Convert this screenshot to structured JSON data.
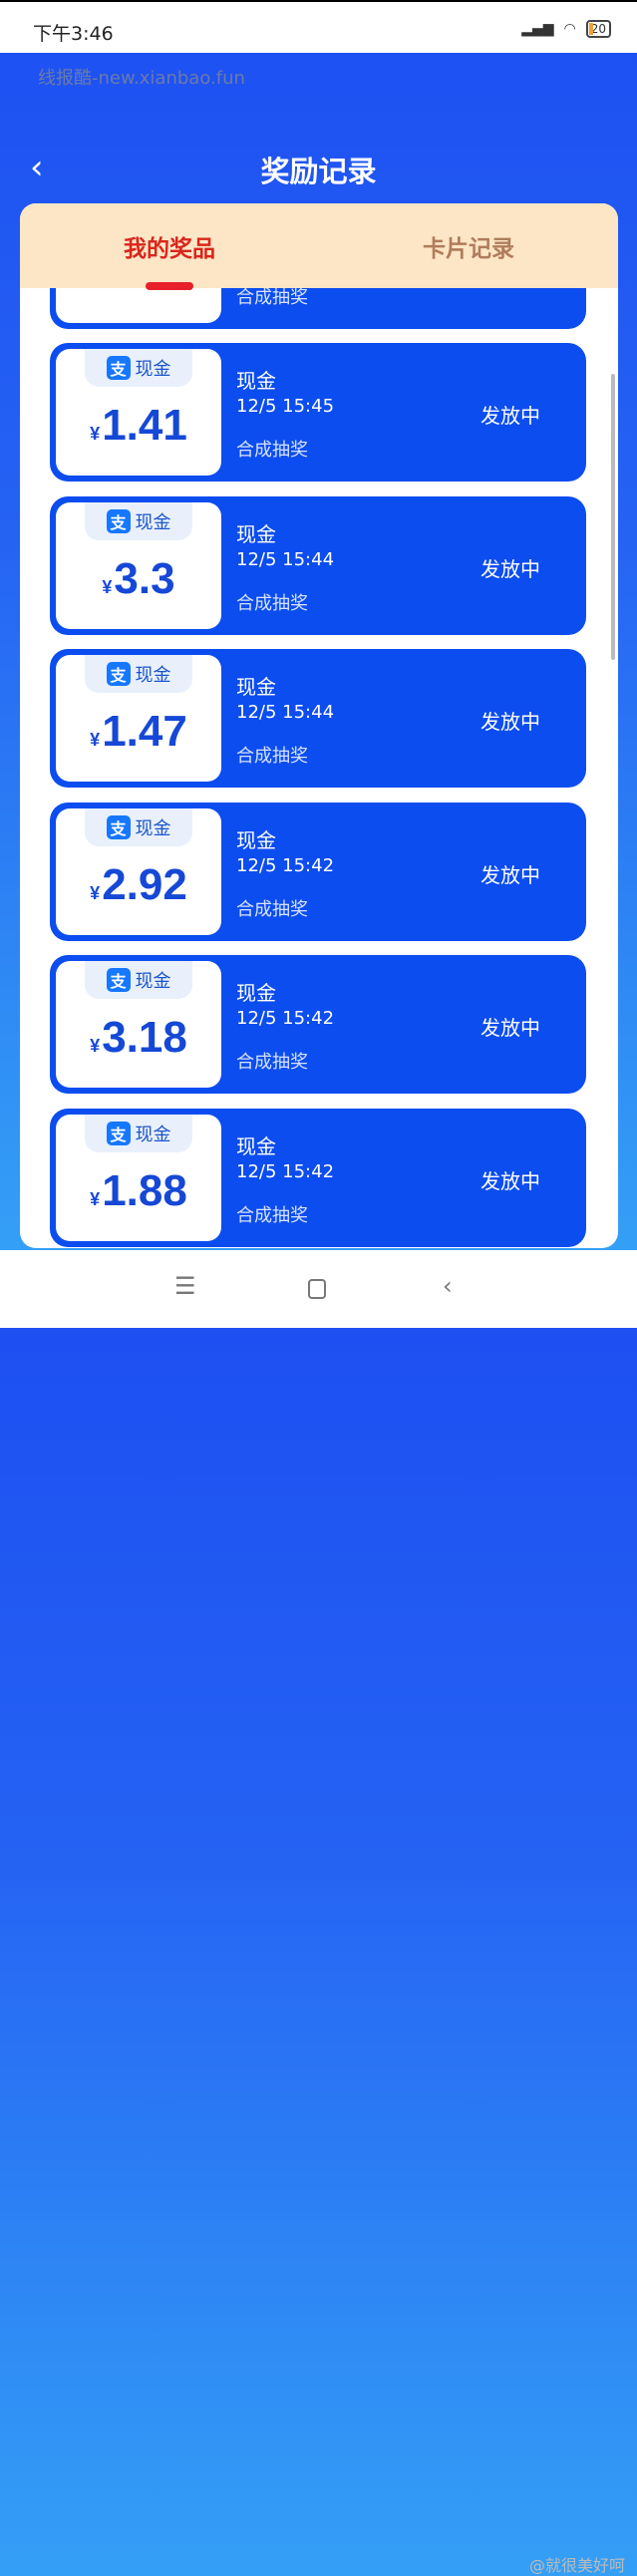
{
  "status_bar": {
    "time": "下午3:46",
    "battery": "20"
  },
  "header": {
    "title": "奖励记录"
  },
  "tabs": [
    {
      "label": "我的奖品",
      "active": true
    },
    {
      "label": "卡片记录",
      "active": false
    }
  ],
  "partial_card": {
    "source": "合成抽奖"
  },
  "records": [
    {
      "badge": "现金",
      "currency": "¥",
      "amount": "1.41",
      "title": "现金",
      "time": "12/5 15:45",
      "source": "合成抽奖",
      "status": "发放中"
    },
    {
      "badge": "现金",
      "currency": "¥",
      "amount": "3.3",
      "title": "现金",
      "time": "12/5 15:44",
      "source": "合成抽奖",
      "status": "发放中"
    },
    {
      "badge": "现金",
      "currency": "¥",
      "amount": "1.47",
      "title": "现金",
      "time": "12/5 15:44",
      "source": "合成抽奖",
      "status": "发放中"
    },
    {
      "badge": "现金",
      "currency": "¥",
      "amount": "2.92",
      "title": "现金",
      "time": "12/5 15:42",
      "source": "合成抽奖",
      "status": "发放中"
    },
    {
      "badge": "现金",
      "currency": "¥",
      "amount": "3.18",
      "title": "现金",
      "time": "12/5 15:42",
      "source": "合成抽奖",
      "status": "发放中"
    },
    {
      "badge": "现金",
      "currency": "¥",
      "amount": "1.88",
      "title": "现金",
      "time": "12/5 15:42",
      "source": "合成抽奖",
      "status": "发放中"
    }
  ],
  "alipay_glyph": "支",
  "watermarks": {
    "site": "线报酷-new.xianbao.fun",
    "weibo": "@就很美好呵"
  },
  "colors": {
    "card": "#0c4df0",
    "tab_bg": "#fde6c6",
    "active_tab": "#d9261c"
  }
}
